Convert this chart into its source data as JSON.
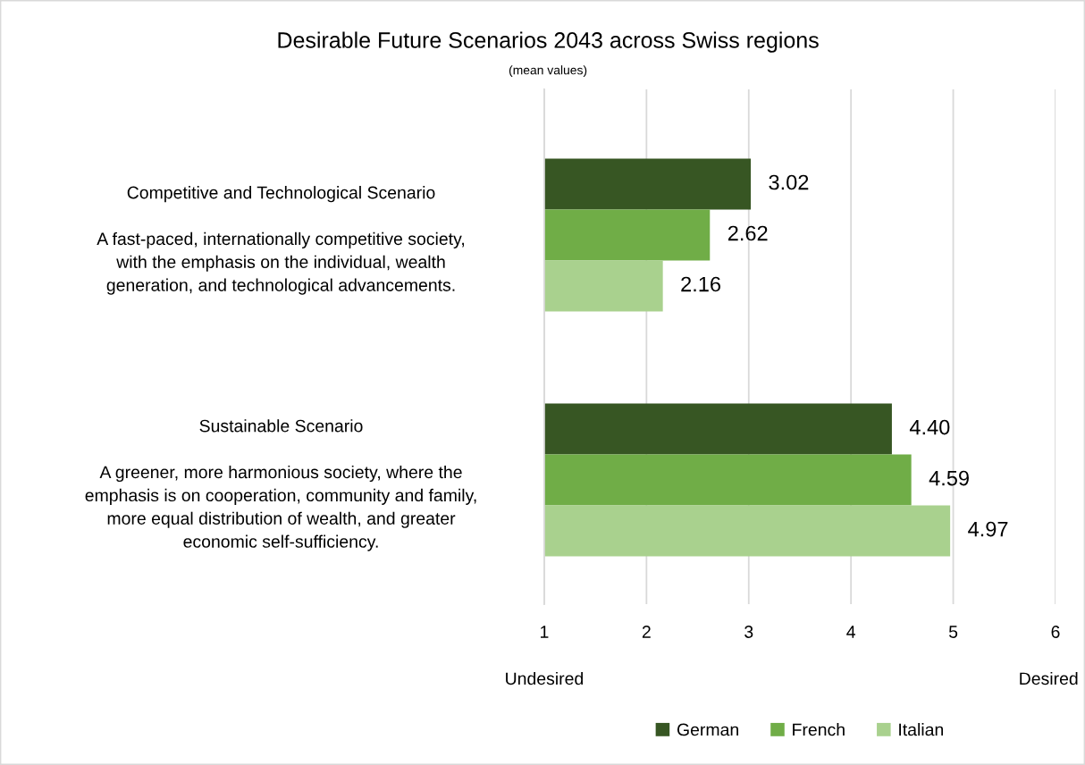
{
  "chart_data": {
    "type": "bar",
    "orientation": "horizontal",
    "title": "Desirable Future Scenarios 2043 across Swiss regions",
    "subtitle": "(mean values)",
    "categories": [
      "Competitive and Technological Scenario\n\nA fast-paced, internationally competitive society,\nwith the emphasis on the individual, wealth\ngeneration, and technological advancements.",
      "Sustainable Scenario\n\nA greener, more harmonious society, where the\nemphasis is on cooperation, community and family,\nmore equal distribution of wealth, and greater\neconomic self-sufficiency."
    ],
    "series": [
      {
        "name": "German",
        "color": "#375623",
        "values": [
          3.02,
          4.4
        ],
        "value_labels": [
          "3.02",
          "4.40"
        ]
      },
      {
        "name": "French",
        "color": "#70ad47",
        "values": [
          2.62,
          4.59
        ],
        "value_labels": [
          "2.62",
          "4.59"
        ]
      },
      {
        "name": "Italian",
        "color": "#a9d18e",
        "values": [
          2.16,
          4.97
        ],
        "value_labels": [
          "2.16",
          "4.97"
        ]
      }
    ],
    "xlim": [
      1,
      6
    ],
    "xticks": [
      1,
      2,
      3,
      4,
      5,
      6
    ],
    "grid": "x",
    "legend": "bottom",
    "annotations": [
      "Undesired",
      "Desired"
    ]
  }
}
